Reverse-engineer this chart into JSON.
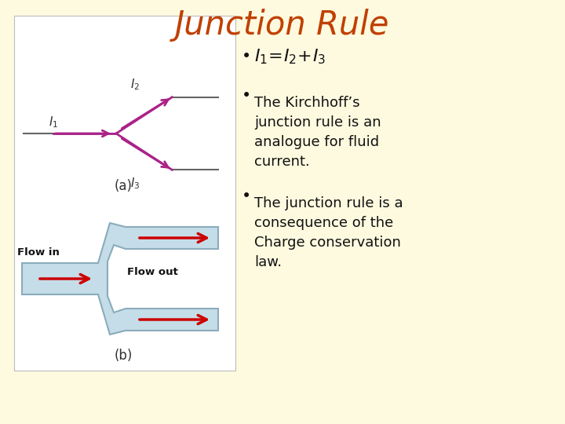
{
  "title": "Junction Rule",
  "title_color": "#C04000",
  "title_fontsize": 30,
  "bg_color": "#FEFAE0",
  "diagram_bg": "#FFFFFF",
  "arrow_color_pink": "#AA2288",
  "arrow_color_red": "#CC0000",
  "fluid_color": "#C5DDE8",
  "fluid_edge": "#8AACBB",
  "line_color": "#666666",
  "label_fontsize": 11,
  "bullet_fontsize": 14,
  "diagram_label_a": "(a)",
  "diagram_label_b": "(b)",
  "flowin_label": "Flow in",
  "flowout_label": "Flow out"
}
